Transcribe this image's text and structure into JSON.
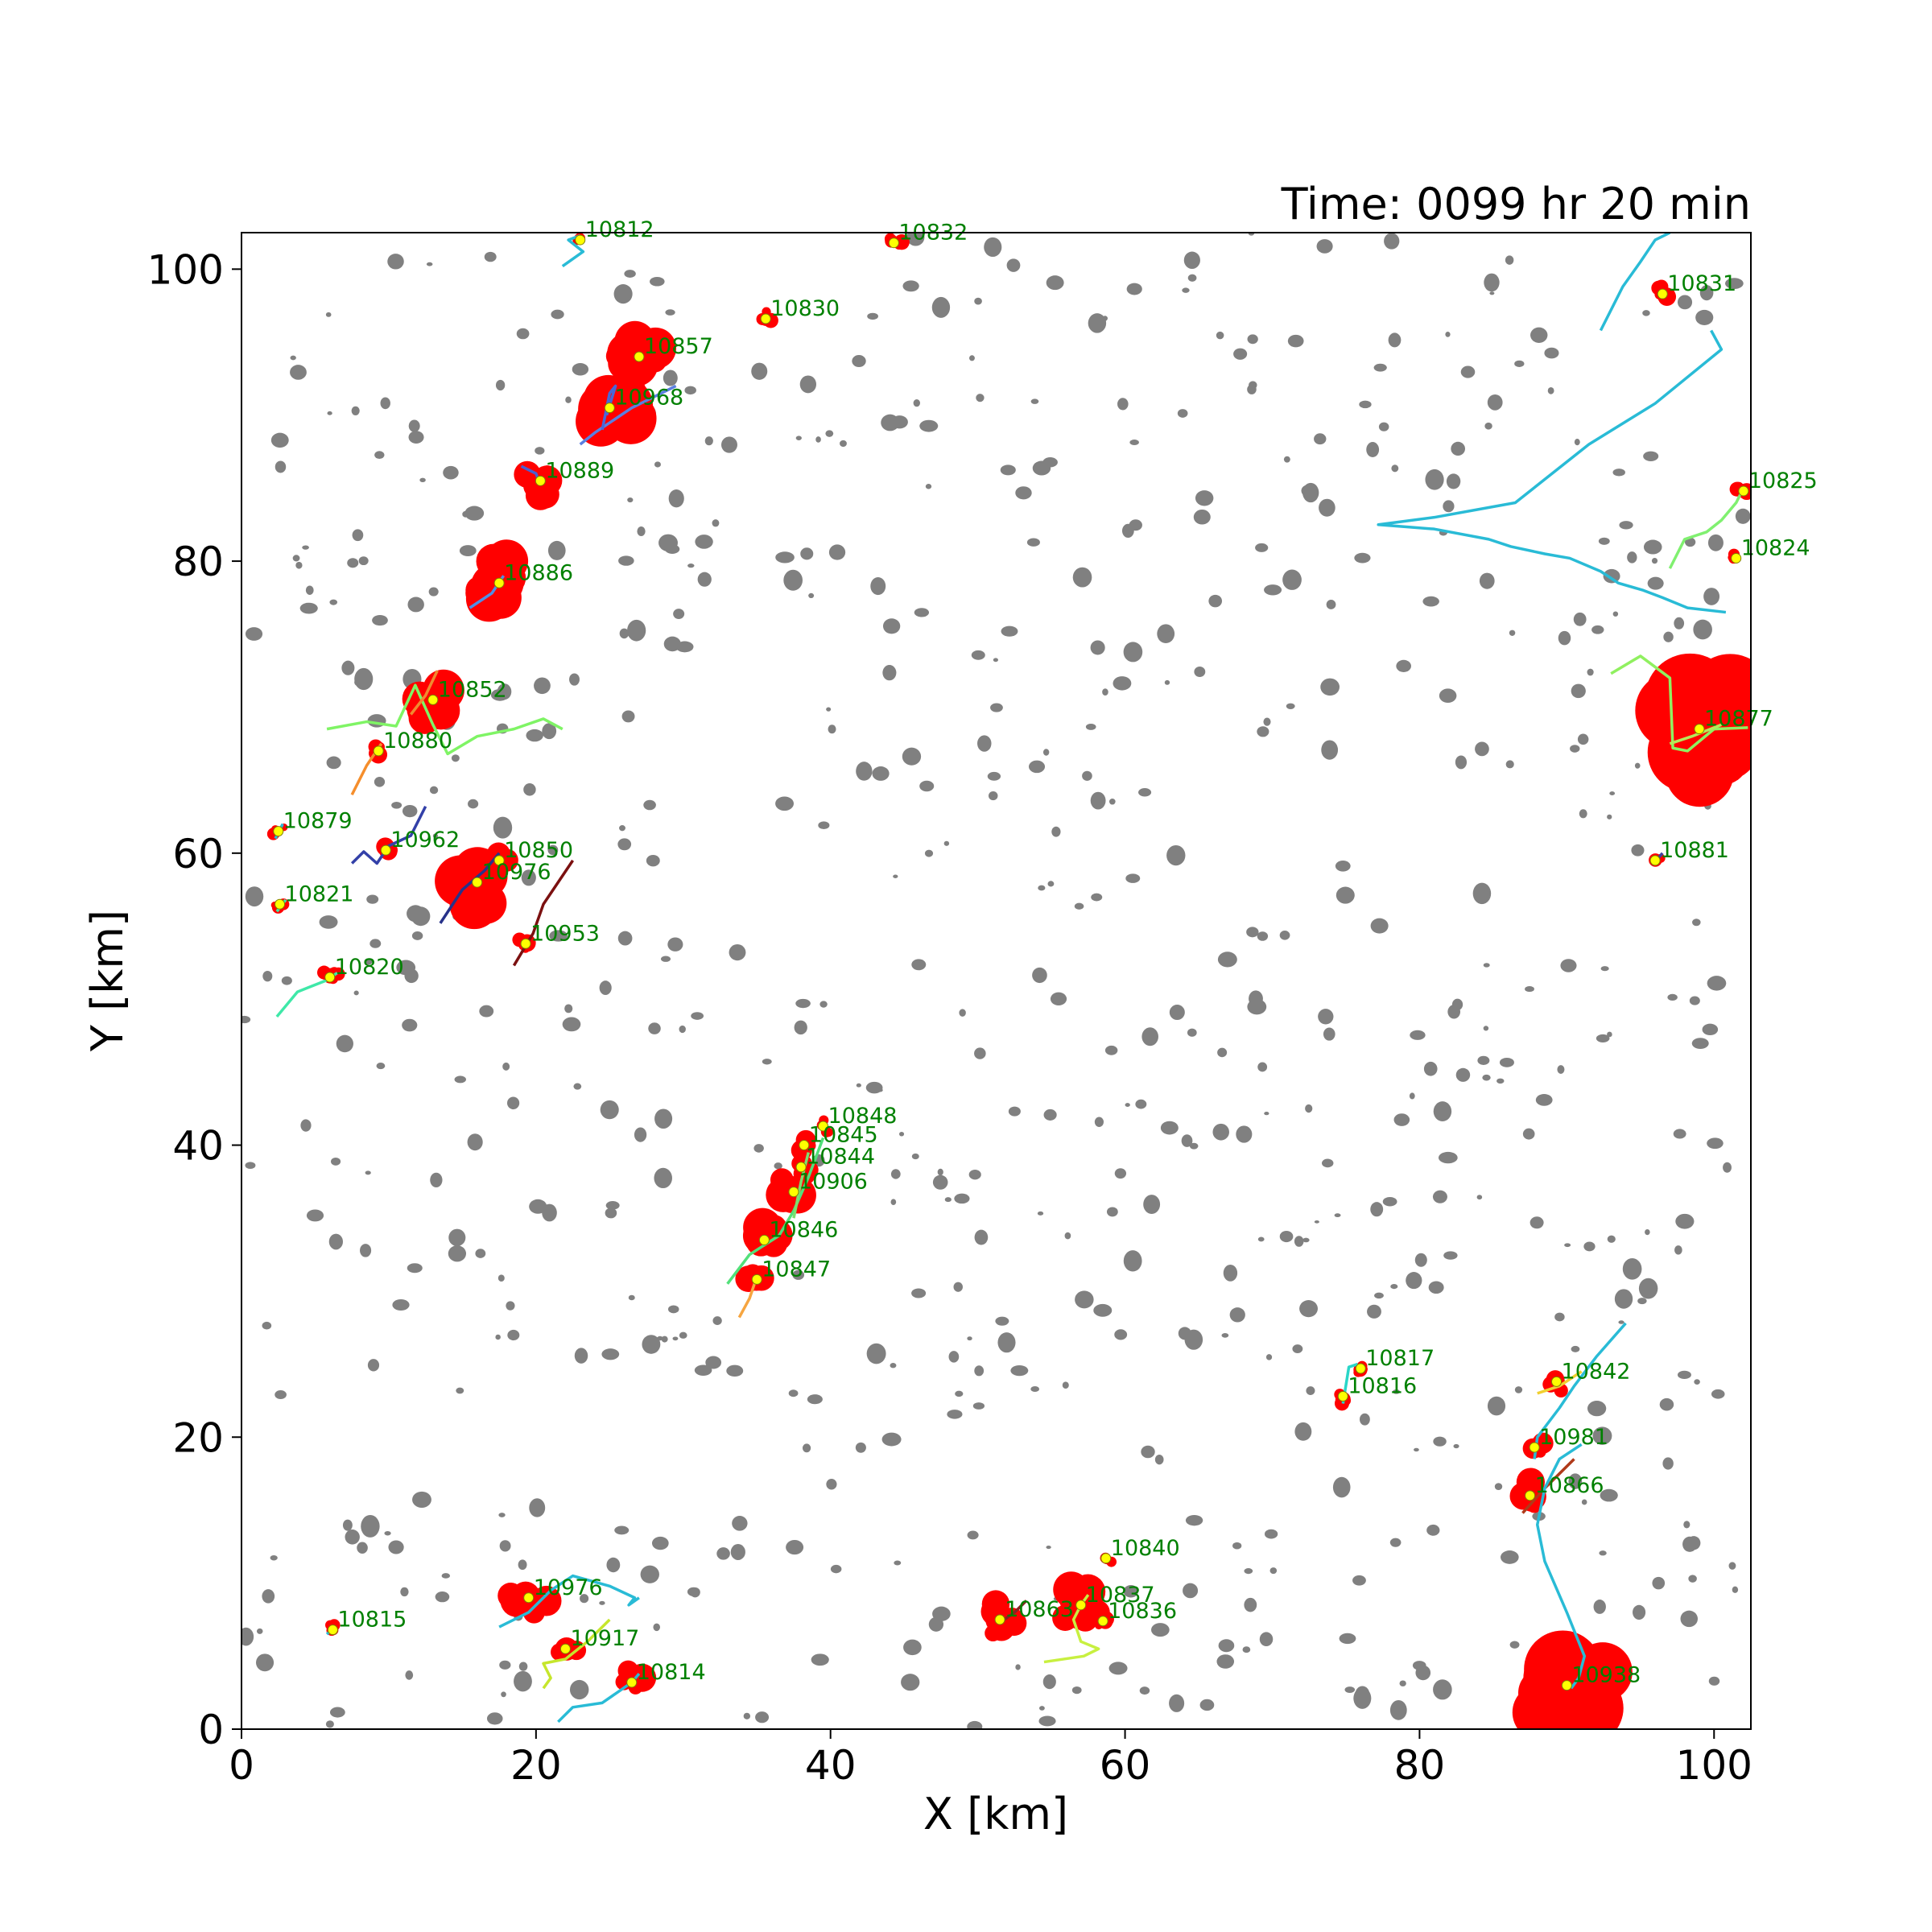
{
  "chart_data": {
    "type": "scatter",
    "title": "Time: 0099 hr 20 min",
    "xlabel": "X [km]",
    "ylabel": "Y [km]",
    "xlim": [
      0,
      102.5
    ],
    "ylim": [
      0,
      102.5
    ],
    "xticks": [
      0,
      20,
      40,
      60,
      80,
      100
    ],
    "yticks": [
      0,
      20,
      40,
      60,
      80,
      100
    ],
    "xtick_labels": [
      "0",
      "20",
      "40",
      "60",
      "80",
      "100"
    ],
    "ytick_labels": [
      "0",
      "20",
      "40",
      "60",
      "80",
      "100"
    ],
    "grid": false,
    "colors": {
      "cell": "#ff0000",
      "background_cell": "#808080",
      "label": "#008000",
      "centroid": "#ffff00"
    },
    "cells": [
      {
        "id": "10812",
        "x": 23.0,
        "y": 102.0,
        "r": 0.5
      },
      {
        "id": "10832",
        "x": 44.3,
        "y": 101.8,
        "r": 0.7
      },
      {
        "id": "10830",
        "x": 35.6,
        "y": 96.6,
        "r": 0.7
      },
      {
        "id": "10857",
        "x": 27.0,
        "y": 94.0,
        "r": 2.0
      },
      {
        "id": "10968",
        "x": 25.0,
        "y": 90.5,
        "r": 2.3
      },
      {
        "id": "10889",
        "x": 20.3,
        "y": 85.5,
        "r": 1.3
      },
      {
        "id": "10886",
        "x": 17.5,
        "y": 78.5,
        "r": 2.0
      },
      {
        "id": "10852",
        "x": 13.0,
        "y": 70.5,
        "r": 1.8
      },
      {
        "id": "10880",
        "x": 9.3,
        "y": 67.0,
        "r": 0.8
      },
      {
        "id": "10879",
        "x": 2.5,
        "y": 61.5,
        "r": 0.6
      },
      {
        "id": "10962",
        "x": 9.8,
        "y": 60.2,
        "r": 0.8
      },
      {
        "id": "10850",
        "x": 17.5,
        "y": 59.5,
        "r": 1.3
      },
      {
        "id": "10976",
        "x": 16.0,
        "y": 58.0,
        "r": 2.2
      },
      {
        "id": "10821",
        "x": 2.6,
        "y": 56.5,
        "r": 0.6
      },
      {
        "id": "10953",
        "x": 19.3,
        "y": 53.8,
        "r": 0.8
      },
      {
        "id": "10820",
        "x": 6.0,
        "y": 51.5,
        "r": 0.8
      },
      {
        "id": "10831",
        "x": 96.5,
        "y": 98.3,
        "r": 0.8
      },
      {
        "id": "10825",
        "x": 102.0,
        "y": 84.8,
        "r": 0.8
      },
      {
        "id": "10824",
        "x": 101.5,
        "y": 80.2,
        "r": 0.5
      },
      {
        "id": "10877",
        "x": 99.0,
        "y": 68.5,
        "r": 4.0
      },
      {
        "id": "10881",
        "x": 96.0,
        "y": 59.5,
        "r": 0.6
      },
      {
        "id": "10848",
        "x": 39.5,
        "y": 41.3,
        "r": 0.7
      },
      {
        "id": "10845",
        "x": 38.2,
        "y": 40.0,
        "r": 0.9
      },
      {
        "id": "10844",
        "x": 38.0,
        "y": 38.5,
        "r": 1.0
      },
      {
        "id": "10906",
        "x": 37.5,
        "y": 36.8,
        "r": 1.6
      },
      {
        "id": "10846",
        "x": 35.5,
        "y": 33.5,
        "r": 1.8
      },
      {
        "id": "10847",
        "x": 35.0,
        "y": 30.8,
        "r": 1.2
      },
      {
        "id": "10817",
        "x": 76.0,
        "y": 24.7,
        "r": 0.6
      },
      {
        "id": "10816",
        "x": 74.8,
        "y": 22.8,
        "r": 0.7
      },
      {
        "id": "10842",
        "x": 89.3,
        "y": 23.8,
        "r": 0.9
      },
      {
        "id": "10981",
        "x": 87.8,
        "y": 19.3,
        "r": 0.9
      },
      {
        "id": "10866",
        "x": 87.5,
        "y": 16.0,
        "r": 1.3
      },
      {
        "id": "10840",
        "x": 58.7,
        "y": 11.7,
        "r": 0.6
      },
      {
        "id": "10863",
        "x": 51.5,
        "y": 7.5,
        "r": 1.5
      },
      {
        "id": "10837",
        "x": 57.0,
        "y": 8.5,
        "r": 1.8
      },
      {
        "id": "10836",
        "x": 58.5,
        "y": 7.4,
        "r": 0.7
      },
      {
        "id": "10976",
        "x": 19.5,
        "y": 9.0,
        "r": 1.6
      },
      {
        "id": "10815",
        "x": 6.2,
        "y": 6.8,
        "r": 0.6
      },
      {
        "id": "10917",
        "x": 22.0,
        "y": 5.5,
        "r": 1.0
      },
      {
        "id": "10814",
        "x": 26.5,
        "y": 3.2,
        "r": 1.2
      },
      {
        "id": "10938",
        "x": 90.0,
        "y": 3.0,
        "r": 3.3
      }
    ],
    "tracks": [
      {
        "id": "10812",
        "color": "#29bbd6",
        "x": [
          21.8,
          23.2,
          22.2,
          23.0
        ],
        "y": [
          100.2,
          101.2,
          102.0,
          102.3
        ]
      },
      {
        "id": "10968",
        "color": "#5a7fe0",
        "x": [
          29.5,
          26.5,
          24.0,
          23.0
        ],
        "y": [
          92.0,
          90.5,
          88.8,
          88.0
        ]
      },
      {
        "id": "10857",
        "color": "#4868d8",
        "x": [
          24.5,
          25.0,
          25.4,
          24.8
        ],
        "y": [
          89.0,
          91.5,
          92.0,
          90.0
        ]
      },
      {
        "id": "10889",
        "color": "#4a5fd0",
        "x": [
          19.0,
          20.0,
          20.3
        ],
        "y": [
          86.5,
          86.0,
          85.2
        ]
      },
      {
        "id": "10886",
        "color": "#4f8fe6",
        "x": [
          15.5,
          17.0,
          17.8
        ],
        "y": [
          76.8,
          77.8,
          79.0
        ]
      },
      {
        "id": "10852a",
        "color": "#7ff465",
        "x": [
          5.8,
          8.5,
          10.5,
          11.8,
          13.0,
          14.0,
          16.0,
          18.5,
          20.5,
          21.8
        ],
        "y": [
          68.5,
          69.0,
          68.7,
          71.5,
          68.8,
          66.8,
          68.0,
          68.5,
          69.2,
          68.5
        ]
      },
      {
        "id": "10852b",
        "color": "#f08a30",
        "x": [
          11.5,
          12.5,
          13.3
        ],
        "y": [
          69.5,
          70.8,
          72.5
        ]
      },
      {
        "id": "10880",
        "color": "#f58e2c",
        "x": [
          7.5,
          8.5,
          9.5
        ],
        "y": [
          64.0,
          66.0,
          67.5
        ]
      },
      {
        "id": "10962",
        "color": "#3340a8",
        "x": [
          7.5,
          8.3,
          9.2,
          10.0,
          11.5,
          12.5
        ],
        "y": [
          59.3,
          60.1,
          59.3,
          60.5,
          61.2,
          63.2
        ]
      },
      {
        "id": "10976",
        "color": "#27328a",
        "x": [
          13.5,
          15.0,
          16.5,
          17.5
        ],
        "y": [
          55.2,
          57.5,
          58.8,
          60.0
        ]
      },
      {
        "id": "10953",
        "color": "#7b1010",
        "x": [
          18.5,
          19.8,
          20.5,
          22.5
        ],
        "y": [
          52.3,
          54.5,
          56.5,
          59.5
        ]
      },
      {
        "id": "10820",
        "color": "#3fe8a8",
        "x": [
          2.4,
          3.8,
          5.8,
          6.5
        ],
        "y": [
          48.8,
          50.5,
          51.3,
          51.8
        ]
      },
      {
        "id": "10821",
        "color": "#3fe8a8",
        "x": [
          2.4,
          3.0
        ],
        "y": [
          56.0,
          56.8
        ]
      },
      {
        "id": "10879",
        "color": "#29bbd6",
        "x": [
          2.3,
          2.8
        ],
        "y": [
          61.0,
          62.0
        ]
      },
      {
        "id": "10831",
        "color": "#29bbd6",
        "x": [
          100.8,
          98.2,
          96.5,
          95.2,
          93.5,
          92.3,
          90.2,
          88.5,
          86.2,
          84.7,
          81.0,
          77.2,
          81.0,
          86.5,
          91.5,
          96.0,
          100.5,
          99.8
        ],
        "y": [
          76.5,
          76.8,
          77.5,
          78.0,
          78.5,
          79.3,
          80.2,
          80.5,
          81.0,
          81.5,
          82.2,
          82.5,
          83.0,
          84.0,
          88.0,
          90.8,
          94.5,
          95.8
        ]
      },
      {
        "id": "10831top",
        "color": "#29bbd6",
        "x": [
          92.3,
          93.8,
          95.0,
          96.0,
          97.0
        ],
        "y": [
          95.8,
          98.8,
          100.5,
          102.0,
          102.5
        ]
      },
      {
        "id": "10825",
        "color": "#80f070",
        "x": [
          97.0,
          98.0,
          99.5,
          100.5,
          101.5,
          102.0
        ],
        "y": [
          79.5,
          81.5,
          82.0,
          82.8,
          84.0,
          85.0
        ]
      },
      {
        "id": "10877",
        "color": "#90f060",
        "x": [
          93.0,
          95.0,
          97.0,
          97.2,
          98.2,
          100.0,
          102.3
        ],
        "y": [
          72.3,
          73.5,
          72.0,
          67.2,
          67.0,
          68.5,
          68.6
        ]
      },
      {
        "id": "10877b",
        "color": "#b5e85a",
        "x": [
          97.0,
          98.5,
          100.5
        ],
        "y": [
          67.5,
          68.0,
          68.8
        ]
      },
      {
        "id": "10881",
        "color": "#3f3f9f",
        "x": [
          95.8,
          96.5
        ],
        "y": [
          59.2,
          60.0
        ]
      },
      {
        "id": "10846",
        "color": "#52e07a",
        "x": [
          33.0,
          34.5,
          36.5,
          37.5,
          38.5,
          39.5
        ],
        "y": [
          30.5,
          32.5,
          33.8,
          35.5,
          37.8,
          40.5
        ]
      },
      {
        "id": "10906",
        "color": "#7ce06e",
        "x": [
          37.5,
          38.0,
          38.5
        ],
        "y": [
          35.0,
          37.5,
          39.5
        ]
      },
      {
        "id": "10847",
        "color": "#f6a540",
        "x": [
          33.8,
          34.5,
          35.0
        ],
        "y": [
          28.2,
          29.5,
          31.0
        ]
      },
      {
        "id": "10817",
        "color": "#29d6c8",
        "x": [
          74.8,
          75.2,
          75.8
        ],
        "y": [
          22.3,
          24.8,
          25.0
        ]
      },
      {
        "id": "10842",
        "color": "#29bbd6",
        "x": [
          94.0,
          92.0,
          90.5,
          89.5,
          88.0,
          87.8
        ],
        "y": [
          27.8,
          25.5,
          23.5,
          22.0,
          20.0,
          18.5
        ]
      },
      {
        "id": "10842b",
        "color": "#f0d030",
        "x": [
          88.0,
          89.5,
          91.0
        ],
        "y": [
          23.0,
          23.5,
          24.5
        ]
      },
      {
        "id": "10866",
        "color": "#b03a1a",
        "x": [
          87.0,
          88.5,
          90.5
        ],
        "y": [
          14.8,
          16.5,
          18.5
        ]
      },
      {
        "id": "10938",
        "color": "#29bbd6",
        "x": [
          91.0,
          89.5,
          88.5,
          88.0,
          88.5,
          90.0,
          91.2,
          90.8,
          90.3
        ],
        "y": [
          19.5,
          18.5,
          16.5,
          14.0,
          11.5,
          8.0,
          5.0,
          3.5,
          2.8
        ]
      },
      {
        "id": "10837",
        "color": "#c8f040",
        "x": [
          54.5,
          57.2,
          58.2,
          57.0,
          56.5,
          57.0,
          57.5
        ],
        "y": [
          4.6,
          5.0,
          5.5,
          6.0,
          7.5,
          8.5,
          9.2
        ]
      },
      {
        "id": "10863",
        "color": "#8b2323",
        "x": [
          51.8,
          52.5,
          53.3
        ],
        "y": [
          7.5,
          8.0,
          8.8
        ]
      },
      {
        "id": "10976b",
        "color": "#29bbd6",
        "x": [
          17.5,
          19.5,
          21.0,
          22.5,
          25.0,
          26.7,
          26.3,
          27.0
        ],
        "y": [
          7.0,
          8.0,
          9.5,
          10.5,
          9.8,
          9.0,
          8.5,
          9.0
        ]
      },
      {
        "id": "10917",
        "color": "#c6e62c",
        "x": [
          20.5,
          21.0,
          20.5,
          22.0,
          23.5,
          25.0
        ],
        "y": [
          2.8,
          3.5,
          4.5,
          4.8,
          6.0,
          7.5
        ]
      },
      {
        "id": "10814",
        "color": "#29bbd6",
        "x": [
          21.5,
          22.5,
          24.5,
          25.5,
          26.5,
          27.0
        ],
        "y": [
          0.5,
          1.5,
          1.8,
          2.5,
          3.2,
          3.8
        ]
      },
      {
        "id": "10815",
        "color": "#29bbd6",
        "x": [
          5.8,
          6.3
        ],
        "y": [
          6.5,
          7.0
        ]
      }
    ]
  }
}
